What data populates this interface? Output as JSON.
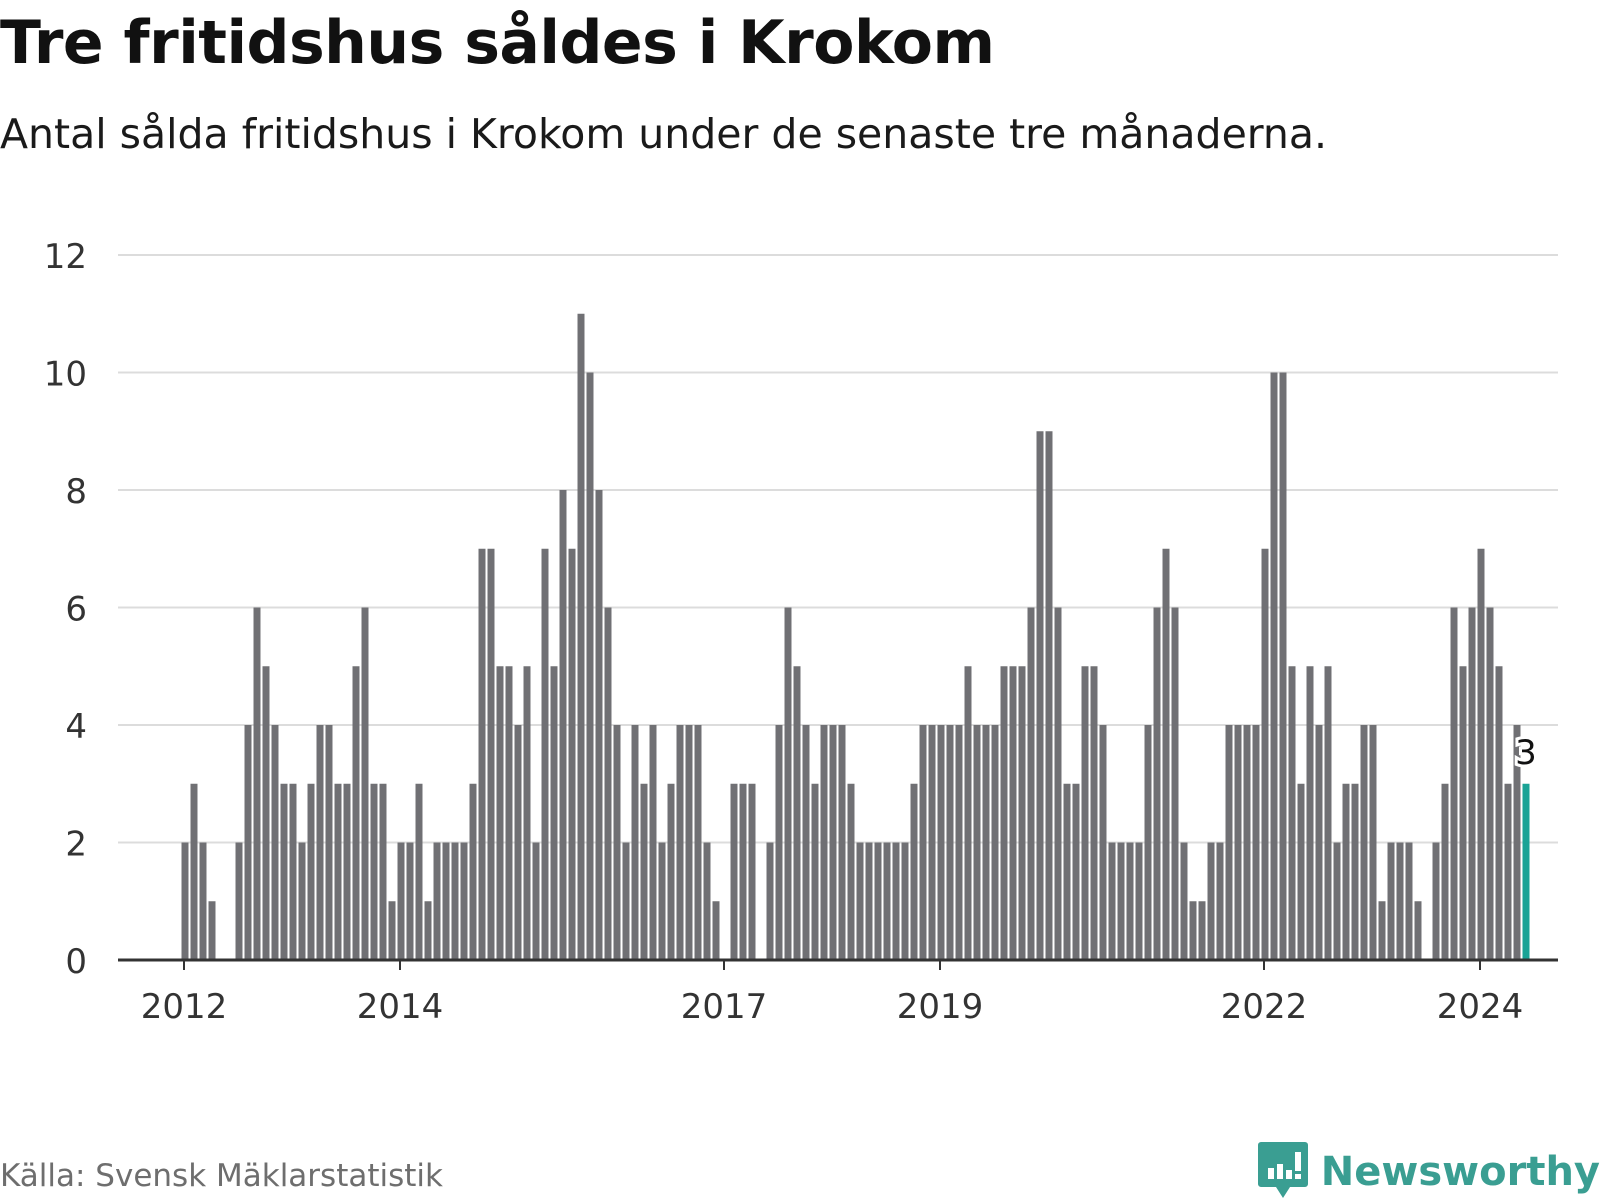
{
  "title": "Tre fritidshus såldes i Krokom",
  "subtitle": "Antal sålda fritidshus i Krokom under de senaste tre månaderna.",
  "source": "Källa: Svensk Mäklarstatistik",
  "brand": "Newsworthy",
  "brand_icon": "chart-speech-bubble-icon",
  "colors": {
    "bar": "#707074",
    "highlight": "#1aa396",
    "grid": "#dcdcdc",
    "axis": "#333333",
    "brand": "#3a9e92"
  },
  "chart_data": {
    "type": "bar",
    "title": "Tre fritidshus såldes i Krokom",
    "xlabel": "",
    "ylabel": "",
    "ylim": [
      0,
      12
    ],
    "yticks": [
      "0",
      "2",
      "4",
      "6",
      "8",
      "10",
      "12"
    ],
    "grid": true,
    "first_period": "2012-01",
    "x_tick_labels": [
      {
        "label": "2012",
        "index": 0
      },
      {
        "label": "2014",
        "index": 24
      },
      {
        "label": "2017",
        "index": 60
      },
      {
        "label": "2019",
        "index": 84
      },
      {
        "label": "2022",
        "index": 120
      },
      {
        "label": "2024",
        "index": 144
      }
    ],
    "values": [
      2,
      3,
      2,
      1,
      0,
      0,
      2,
      4,
      6,
      5,
      4,
      3,
      3,
      2,
      3,
      4,
      4,
      3,
      3,
      5,
      6,
      3,
      3,
      1,
      2,
      2,
      3,
      1,
      2,
      2,
      2,
      2,
      3,
      7,
      7,
      5,
      5,
      4,
      5,
      2,
      7,
      5,
      8,
      7,
      11,
      10,
      8,
      6,
      4,
      2,
      4,
      3,
      4,
      2,
      3,
      4,
      4,
      4,
      2,
      1,
      0,
      3,
      3,
      3,
      0,
      2,
      4,
      6,
      5,
      4,
      3,
      4,
      4,
      4,
      3,
      2,
      2,
      2,
      2,
      2,
      2,
      3,
      4,
      4,
      4,
      4,
      4,
      5,
      4,
      4,
      4,
      5,
      5,
      5,
      6,
      9,
      9,
      6,
      3,
      3,
      5,
      5,
      4,
      2,
      2,
      2,
      2,
      4,
      6,
      7,
      6,
      2,
      1,
      1,
      2,
      2,
      4,
      4,
      4,
      4,
      7,
      10,
      10,
      5,
      3,
      5,
      4,
      5,
      2,
      3,
      3,
      4,
      4,
      1,
      2,
      2,
      2,
      1,
      0,
      2,
      3,
      6,
      5,
      6,
      7,
      6,
      5,
      3,
      4,
      3
    ],
    "highlight_index": 149,
    "highlight_label": "3"
  }
}
